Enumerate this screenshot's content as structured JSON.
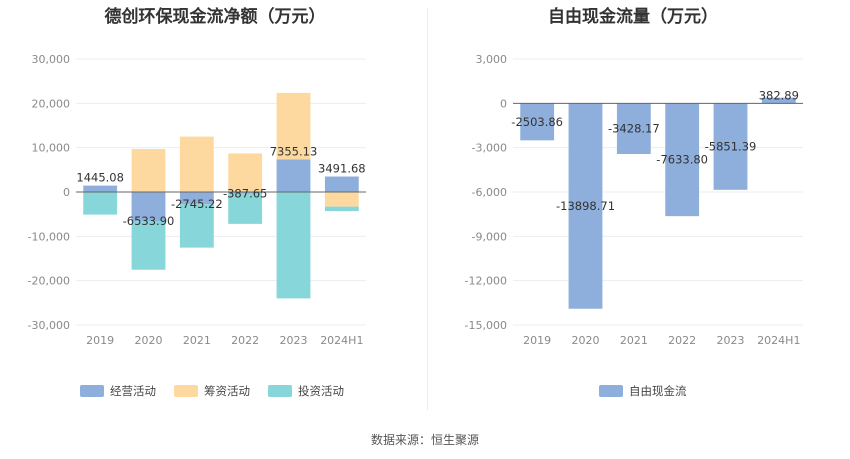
{
  "colors": {
    "operating": "#8eaedc",
    "financing": "#fdd9a0",
    "investing": "#86d6da",
    "fcf": "#8eaedc",
    "grid": "#e9edf3",
    "zero_line": "#666666"
  },
  "chart_data": [
    {
      "type": "bar",
      "stacked": true,
      "title": "德创环保现金流净额（万元）",
      "categories": [
        "2019",
        "2020",
        "2021",
        "2022",
        "2023",
        "2024H1"
      ],
      "ylim": [
        -30000,
        30000
      ],
      "yticks": [
        30000,
        20000,
        10000,
        0,
        -10000,
        -20000,
        -30000
      ],
      "ytick_labels": [
        "30,000",
        "20,000",
        "10,000",
        "0",
        "-10,000",
        "-20,000",
        "-30,000"
      ],
      "grid": true,
      "legend_position": "bottom-left",
      "series": [
        {
          "name": "经营活动",
          "values": [
            1445.08,
            -6533.9,
            -2745.22,
            -387.65,
            7355.13,
            3491.68
          ]
        },
        {
          "name": "筹资活动",
          "values": [
            0,
            9700,
            12500,
            8700,
            15000,
            -3300
          ]
        },
        {
          "name": "投资活动",
          "values": [
            -5100,
            -11000,
            -9800,
            -6800,
            -24000,
            -1000
          ]
        }
      ],
      "data_labels": [
        "1445.08",
        "-6533.90",
        "-2745.22",
        "-387.65",
        "7355.13",
        "3491.68"
      ]
    },
    {
      "type": "bar",
      "title": "自由现金流量（万元）",
      "categories": [
        "2019",
        "2020",
        "2021",
        "2022",
        "2023",
        "2024H1"
      ],
      "ylim": [
        -15000,
        3000
      ],
      "yticks": [
        3000,
        0,
        -3000,
        -6000,
        -9000,
        -12000,
        -15000
      ],
      "ytick_labels": [
        "3,000",
        "0",
        "-3,000",
        "-6,000",
        "-9,000",
        "-12,000",
        "-15,000"
      ],
      "grid": true,
      "legend_position": "bottom-center",
      "series": [
        {
          "name": "自由现金流",
          "values": [
            -2503.86,
            -13898.71,
            -3428.17,
            -7633.8,
            -5851.39,
            382.89
          ]
        }
      ],
      "data_labels": [
        "-2503.86",
        "-13898.71",
        "-3428.17",
        "-7633.80",
        "-5851.39",
        "382.89"
      ]
    }
  ],
  "source_text": "数据来源：恒生聚源"
}
